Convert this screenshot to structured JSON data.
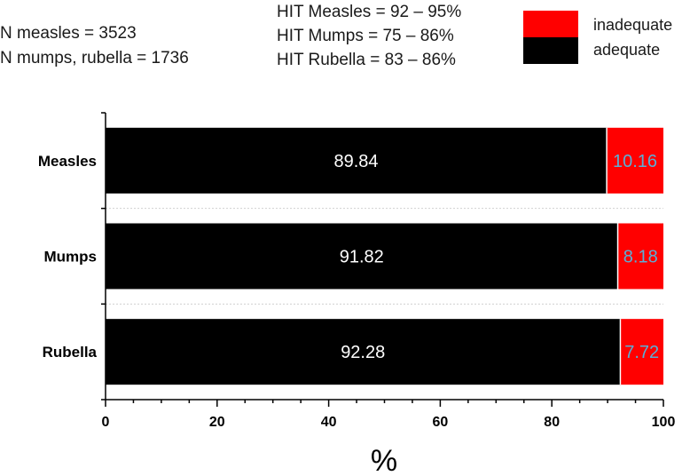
{
  "notes": {
    "left": [
      "N measles = 3523",
      "N mumps, rubella = 1736"
    ],
    "center": [
      "HIT Measles = 92 – 95%",
      "HIT Mumps = 75 – 86%",
      "HIT Rubella = 83 – 86%"
    ]
  },
  "chart_data": {
    "type": "bar",
    "orientation": "horizontal",
    "stacked": true,
    "categories": [
      "Measles",
      "Mumps",
      "Rubella"
    ],
    "series": [
      {
        "name": "adequate",
        "values": [
          89.84,
          91.82,
          92.28
        ],
        "color": "#000000",
        "label_color": "#ffffff"
      },
      {
        "name": "inadequate",
        "values": [
          10.16,
          8.18,
          7.72
        ],
        "color": "#ff0000",
        "label_color": "#5aaed6"
      }
    ],
    "value_labels": [
      [
        "89.84",
        "10.16"
      ],
      [
        "91.82",
        "8.18"
      ],
      [
        "92.28",
        "7.72"
      ]
    ],
    "xlabel": "%",
    "xlim": [
      0,
      100
    ],
    "xticks": [
      0,
      20,
      40,
      60,
      80,
      100
    ],
    "tick_labels": [
      "0",
      "20",
      "40",
      "60",
      "80",
      "100"
    ],
    "legend": {
      "placement": "top-right",
      "entries": [
        "inadequate",
        "adequate"
      ]
    },
    "grid": false
  }
}
